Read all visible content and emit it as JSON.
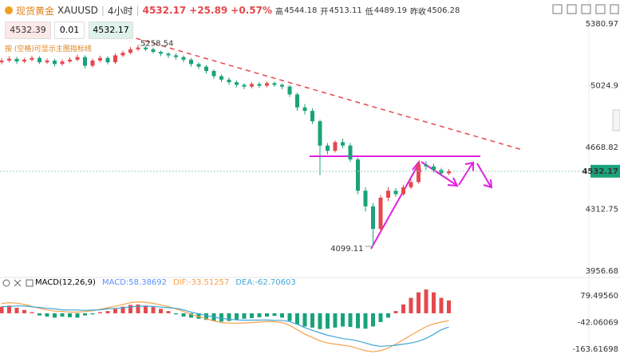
{
  "header": {
    "name": "现货黄金",
    "symbol": "XAUUSD",
    "interval": "4小时",
    "change": "+25.89",
    "change_pct": "+0.57%",
    "high_label": "高",
    "high": "4544.18",
    "open_label": "开",
    "open": "4513.11",
    "low_label": "低",
    "low": "4489.19",
    "prev_label": "昨收",
    "prev": "4506.28",
    "bid": "4532.39",
    "lot": "0.01",
    "hint": "按 (空格)可显示主图指标线"
  },
  "chart_data": [
    {
      "type": "candlestick",
      "up_color": "#e5484d",
      "down_color": "#1aa37a",
      "open": [
        5160,
        5170,
        5180,
        5165,
        5175,
        5185,
        5160,
        5170,
        5150,
        5165,
        5175,
        5190,
        5140,
        5170,
        5185,
        5160,
        5200,
        5215,
        5235,
        5245,
        5235,
        5220,
        5210,
        5200,
        5190,
        5175,
        5150,
        5135,
        5110,
        5080,
        5060,
        5045,
        5030,
        5020,
        5035,
        5025,
        5040,
        5030,
        5020,
        4975,
        4900,
        4880,
        4820,
        4680,
        4650,
        4700,
        4680,
        4600,
        4420,
        4330,
        4200,
        4380,
        4420,
        4400,
        4440,
        4470,
        4570,
        4560,
        4540,
        4520
      ],
      "high": [
        5185,
        5195,
        5192,
        5185,
        5198,
        5195,
        5182,
        5180,
        5178,
        5188,
        5205,
        5200,
        5182,
        5198,
        5195,
        5212,
        5228,
        5248,
        5258.54,
        5255,
        5245,
        5228,
        5218,
        5212,
        5200,
        5185,
        5160,
        5145,
        5120,
        5090,
        5072,
        5055,
        5040,
        5045,
        5045,
        5050,
        5048,
        5038,
        5030,
        4985,
        4920,
        4895,
        4830,
        4695,
        4710,
        4720,
        4695,
        4610,
        4440,
        4350,
        4395,
        4440,
        4435,
        4455,
        4485,
        4585,
        4590,
        4575,
        4552,
        4545
      ],
      "low": [
        5148,
        5160,
        5150,
        5155,
        5165,
        5150,
        5150,
        5135,
        5140,
        5155,
        5165,
        5125,
        5130,
        5160,
        5148,
        5150,
        5190,
        5205,
        5225,
        5225,
        5210,
        5195,
        5185,
        5175,
        5160,
        5135,
        5120,
        5095,
        5065,
        5045,
        5030,
        5015,
        5005,
        5010,
        5012,
        5015,
        5018,
        5005,
        4960,
        4880,
        4860,
        4805,
        4510,
        4630,
        4640,
        4665,
        4585,
        4400,
        4300,
        4099.11,
        4180,
        4360,
        4385,
        4390,
        4430,
        4460,
        4540,
        4525,
        4505,
        4510
      ],
      "close": [
        5170,
        5180,
        5165,
        5175,
        5185,
        5160,
        5170,
        5150,
        5165,
        5175,
        5190,
        5140,
        5170,
        5185,
        5160,
        5200,
        5215,
        5235,
        5245,
        5235,
        5220,
        5210,
        5200,
        5190,
        5175,
        5150,
        5135,
        5110,
        5080,
        5060,
        5045,
        5030,
        5020,
        5035,
        5025,
        5040,
        5030,
        5020,
        4975,
        4900,
        4880,
        4820,
        4680,
        4650,
        4700,
        4680,
        4600,
        4420,
        4330,
        4200,
        4380,
        4420,
        4400,
        4440,
        4470,
        4570,
        4560,
        4540,
        4520,
        4532.17
      ],
      "last_price": 4532.17,
      "ylim": [
        3934,
        5496
      ],
      "yticks": [
        5380.97,
        5024.9,
        4668.82,
        4312.75,
        3956.68
      ]
    },
    {
      "type": "macd",
      "title": "MACD(12,26,9)",
      "legend": [
        "MACD:58.38692",
        "DIF:-33.51257",
        "DEA:-62.70603"
      ],
      "legend_colors": [
        "#5b8ff9",
        "#f5a04a",
        "#3fa7d6"
      ],
      "hist": {
        "up_color": "#e5484d",
        "down_color": "#1aa37a",
        "values": [
          30,
          35,
          25,
          15,
          5,
          -10,
          -15,
          -20,
          -15,
          -18,
          -20,
          -10,
          -5,
          5,
          10,
          20,
          30,
          38,
          40,
          35,
          28,
          20,
          10,
          -5,
          -15,
          -20,
          -25,
          -30,
          -35,
          -38,
          -35,
          -30,
          -25,
          -22,
          -18,
          -15,
          -12,
          -20,
          -35,
          -50,
          -60,
          -65,
          -72,
          -70,
          -65,
          -60,
          -62,
          -68,
          -70,
          -60,
          -40,
          -20,
          10,
          40,
          70,
          95,
          108,
          95,
          70,
          58.38692
        ]
      },
      "series": [
        {
          "color": "#f5a04a",
          "values": [
            45,
            48,
            46,
            40,
            32,
            22,
            15,
            10,
            8,
            6,
            5,
            8,
            12,
            18,
            25,
            32,
            40,
            48,
            52,
            50,
            45,
            38,
            30,
            20,
            8,
            -5,
            -15,
            -25,
            -35,
            -42,
            -45,
            -45,
            -44,
            -42,
            -40,
            -38,
            -38,
            -42,
            -55,
            -75,
            -95,
            -110,
            -125,
            -135,
            -140,
            -145,
            -150,
            -160,
            -170,
            -175,
            -170,
            -158,
            -140,
            -120,
            -100,
            -80,
            -60,
            -48,
            -40,
            -33.51257
          ]
        },
        {
          "color": "#3fa7d6",
          "values": [
            30,
            30.5,
            33.5,
            32.5,
            29.5,
            27,
            22.5,
            20,
            15.5,
            15,
            15,
            13,
            14.5,
            15.5,
            20,
            22,
            25,
            29,
            32,
            32.5,
            31,
            28,
            25,
            22.5,
            15.5,
            5,
            -2.5,
            -10,
            -17.5,
            -23,
            -27.5,
            -30,
            -31.5,
            -31,
            -31,
            -30.5,
            -32,
            -32,
            -37.5,
            -50,
            -65,
            -77.5,
            -89,
            -100,
            -107.5,
            -115,
            -119,
            -126,
            -135,
            -145,
            -150,
            -148,
            -145,
            -140,
            -135,
            -127.5,
            -114,
            -95.5,
            -75,
            -62.70603
          ]
        }
      ],
      "ylim": [
        -185,
        112
      ],
      "yticks": [
        {
          "value": 79.4956,
          "label": "79.49560"
        },
        -42.06069,
        -163.61698
      ]
    }
  ]
}
